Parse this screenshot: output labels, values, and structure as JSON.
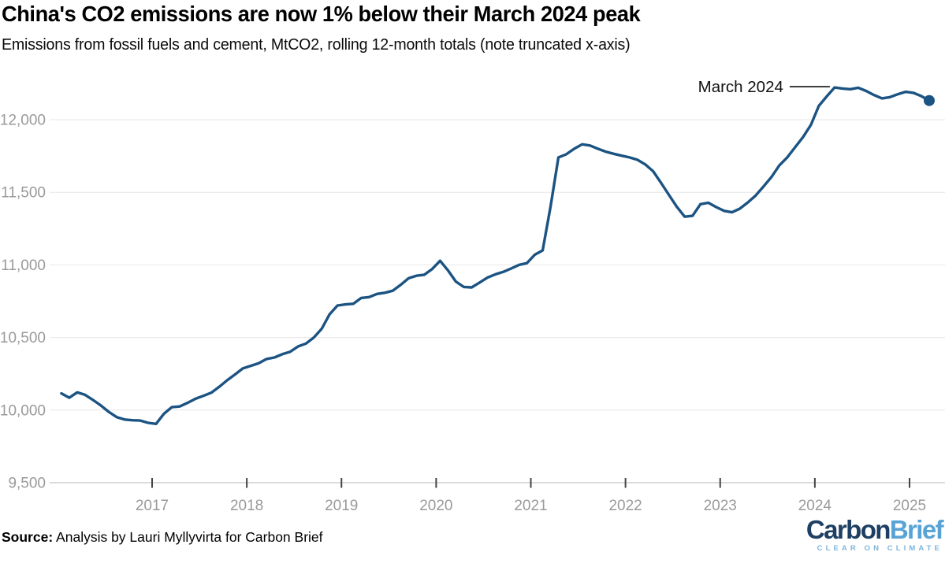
{
  "header": {
    "title": "China's CO2 emissions are now 1% below their March 2024 peak",
    "subtitle": "Emissions from fossil fuels and cement, MtCO2, rolling 12-month totals (note truncated x-axis)"
  },
  "chart_data": {
    "type": "line",
    "title": "China's CO2 emissions are now 1% below their March 2024 peak",
    "subtitle": "Emissions from fossil fuels and cement, MtCO2, rolling 12-month totals (note truncated x-axis)",
    "unit": "MtCO2",
    "grid": true,
    "legend": "none",
    "y_axis": {
      "min": 9500,
      "max": 12300,
      "ticks": [
        {
          "value": 9500,
          "label": "9,500"
        },
        {
          "value": 10000,
          "label": "10,000"
        },
        {
          "value": 10500,
          "label": "10,500"
        },
        {
          "value": 11000,
          "label": "11,000"
        },
        {
          "value": 11500,
          "label": "11,500"
        },
        {
          "value": 12000,
          "label": "12,000"
        }
      ]
    },
    "x_axis": {
      "note": "truncated x-axis, data runs Jan 2016 to Mar 2025",
      "ticks": [
        2017,
        2018,
        2019,
        2020,
        2021,
        2022,
        2023,
        2024,
        2025
      ]
    },
    "annotation": {
      "text": "March 2024",
      "date": "2024-03"
    },
    "colors": {
      "line": "#1b5382",
      "gridline": "#e7e7e7",
      "axis_line": "#cfcfcf",
      "tick_mark": "#444444",
      "axis_text": "#9a9a9a",
      "annotation_text": "#111111"
    },
    "series": [
      {
        "name": "China CO2 emissions, rolling 12-month total (MtCO2)",
        "points": [
          [
            "2016-01",
            10115
          ],
          [
            "2016-02",
            10085
          ],
          [
            "2016-03",
            10122
          ],
          [
            "2016-04",
            10105
          ],
          [
            "2016-05",
            10070
          ],
          [
            "2016-06",
            10032
          ],
          [
            "2016-07",
            9988
          ],
          [
            "2016-08",
            9952
          ],
          [
            "2016-09",
            9935
          ],
          [
            "2016-10",
            9930
          ],
          [
            "2016-11",
            9928
          ],
          [
            "2016-12",
            9912
          ],
          [
            "2017-01",
            9905
          ],
          [
            "2017-02",
            9975
          ],
          [
            "2017-03",
            10020
          ],
          [
            "2017-04",
            10025
          ],
          [
            "2017-05",
            10050
          ],
          [
            "2017-06",
            10078
          ],
          [
            "2017-07",
            10098
          ],
          [
            "2017-08",
            10120
          ],
          [
            "2017-09",
            10160
          ],
          [
            "2017-10",
            10205
          ],
          [
            "2017-11",
            10245
          ],
          [
            "2017-12",
            10287
          ],
          [
            "2018-01",
            10305
          ],
          [
            "2018-02",
            10322
          ],
          [
            "2018-03",
            10352
          ],
          [
            "2018-04",
            10362
          ],
          [
            "2018-05",
            10385
          ],
          [
            "2018-06",
            10402
          ],
          [
            "2018-07",
            10438
          ],
          [
            "2018-08",
            10458
          ],
          [
            "2018-09",
            10500
          ],
          [
            "2018-10",
            10560
          ],
          [
            "2018-11",
            10660
          ],
          [
            "2018-12",
            10720
          ],
          [
            "2019-01",
            10728
          ],
          [
            "2019-02",
            10732
          ],
          [
            "2019-03",
            10772
          ],
          [
            "2019-04",
            10778
          ],
          [
            "2019-05",
            10800
          ],
          [
            "2019-06",
            10808
          ],
          [
            "2019-07",
            10822
          ],
          [
            "2019-08",
            10862
          ],
          [
            "2019-09",
            10908
          ],
          [
            "2019-10",
            10925
          ],
          [
            "2019-11",
            10932
          ],
          [
            "2019-12",
            10972
          ],
          [
            "2020-01",
            11028
          ],
          [
            "2020-02",
            10962
          ],
          [
            "2020-03",
            10885
          ],
          [
            "2020-04",
            10848
          ],
          [
            "2020-05",
            10845
          ],
          [
            "2020-06",
            10878
          ],
          [
            "2020-07",
            10912
          ],
          [
            "2020-08",
            10935
          ],
          [
            "2020-09",
            10952
          ],
          [
            "2020-10",
            10975
          ],
          [
            "2020-11",
            11000
          ],
          [
            "2020-12",
            11012
          ],
          [
            "2021-01",
            11070
          ],
          [
            "2021-02",
            11100
          ],
          [
            "2021-03",
            11400
          ],
          [
            "2021-04",
            11740
          ],
          [
            "2021-05",
            11762
          ],
          [
            "2021-06",
            11800
          ],
          [
            "2021-07",
            11830
          ],
          [
            "2021-08",
            11822
          ],
          [
            "2021-09",
            11800
          ],
          [
            "2021-10",
            11780
          ],
          [
            "2021-11",
            11765
          ],
          [
            "2021-12",
            11752
          ],
          [
            "2022-01",
            11740
          ],
          [
            "2022-02",
            11724
          ],
          [
            "2022-03",
            11692
          ],
          [
            "2022-04",
            11645
          ],
          [
            "2022-05",
            11565
          ],
          [
            "2022-06",
            11482
          ],
          [
            "2022-07",
            11400
          ],
          [
            "2022-08",
            11332
          ],
          [
            "2022-09",
            11338
          ],
          [
            "2022-10",
            11418
          ],
          [
            "2022-11",
            11428
          ],
          [
            "2022-12",
            11398
          ],
          [
            "2023-01",
            11372
          ],
          [
            "2023-02",
            11362
          ],
          [
            "2023-03",
            11388
          ],
          [
            "2023-04",
            11430
          ],
          [
            "2023-05",
            11478
          ],
          [
            "2023-06",
            11540
          ],
          [
            "2023-07",
            11605
          ],
          [
            "2023-08",
            11685
          ],
          [
            "2023-09",
            11740
          ],
          [
            "2023-10",
            11810
          ],
          [
            "2023-11",
            11880
          ],
          [
            "2023-12",
            11965
          ],
          [
            "2024-01",
            12095
          ],
          [
            "2024-02",
            12160
          ],
          [
            "2024-03",
            12222
          ],
          [
            "2024-04",
            12215
          ],
          [
            "2024-05",
            12210
          ],
          [
            "2024-06",
            12220
          ],
          [
            "2024-07",
            12198
          ],
          [
            "2024-08",
            12170
          ],
          [
            "2024-09",
            12147
          ],
          [
            "2024-10",
            12155
          ],
          [
            "2024-11",
            12175
          ],
          [
            "2024-12",
            12192
          ],
          [
            "2025-01",
            12185
          ],
          [
            "2025-02",
            12162
          ],
          [
            "2025-03",
            12132
          ]
        ]
      }
    ]
  },
  "footer": {
    "source_label": "Source:",
    "source_text": " Analysis by Lauri Myllyvirta for Carbon Brief"
  },
  "logo": {
    "part1": "Carbon",
    "part2": "Brief",
    "tagline": "CLEAR ON CLIMATE",
    "part1_color": "#1e3f63",
    "part2_color": "#58a3d6",
    "tagline_color": "#7cb5dd"
  }
}
